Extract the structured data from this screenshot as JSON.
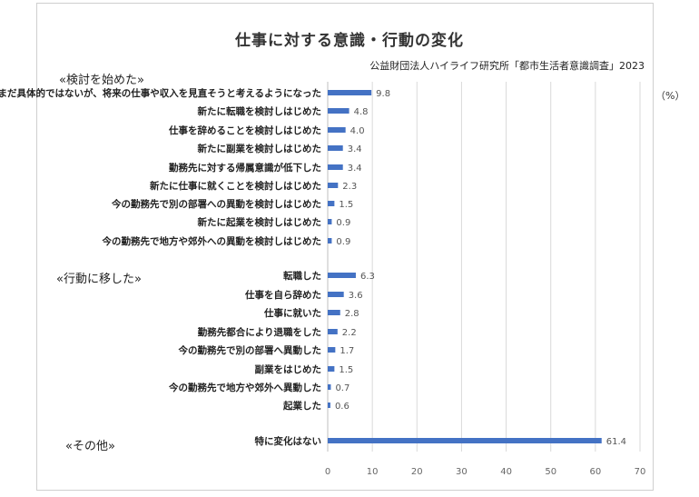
{
  "title": "仕事に対する意識・行動の変化",
  "source": "公益財団法人ハイライフ研究所「都市生活者意識調査」2023",
  "unit": "（%）",
  "colors": {
    "bar": "#4472c4",
    "grid": "#d9d9d9"
  },
  "chart_data": {
    "type": "bar",
    "orientation": "horizontal",
    "xlim": [
      0,
      70
    ],
    "xticks": [
      0,
      10,
      20,
      30,
      40,
      50,
      60,
      70
    ],
    "grid": true,
    "groups": [
      {
        "label": "«検討を始めた»",
        "items": [
          {
            "category": "まだ具体的ではないが、将来の仕事や収入を見直そうと考えるようになった",
            "value": 9.8
          },
          {
            "category": "新たに転職を検討しはじめた",
            "value": 4.8
          },
          {
            "category": "仕事を辞めることを検討しはじめた",
            "value": 4.0
          },
          {
            "category": "新たに副業を検討しはじめた",
            "value": 3.4
          },
          {
            "category": "勤務先に対する帰属意識が低下した",
            "value": 3.4
          },
          {
            "category": "新たに仕事に就くことを検討しはじめた",
            "value": 2.3
          },
          {
            "category": "今の勤務先で別の部署への異動を検討しはじめた",
            "value": 1.5
          },
          {
            "category": "新たに起業を検討しはじめた",
            "value": 0.9
          },
          {
            "category": "今の勤務先で地方や郊外への異動を検討しはじめた",
            "value": 0.9
          }
        ]
      },
      {
        "label": "«行動に移した»",
        "items": [
          {
            "category": "転職した",
            "value": 6.3
          },
          {
            "category": "仕事を自ら辞めた",
            "value": 3.6
          },
          {
            "category": "仕事に就いた",
            "value": 2.8
          },
          {
            "category": "勤務先都合により退職をした",
            "value": 2.2
          },
          {
            "category": "今の勤務先で別の部署へ異動した",
            "value": 1.7
          },
          {
            "category": "副業をはじめた",
            "value": 1.5
          },
          {
            "category": "今の勤務先で地方や郊外へ異動した",
            "value": 0.7
          },
          {
            "category": "起業した",
            "value": 0.6
          }
        ]
      },
      {
        "label": "«その他»",
        "items": [
          {
            "category": "特に変化はない",
            "value": 61.4
          }
        ]
      }
    ]
  }
}
